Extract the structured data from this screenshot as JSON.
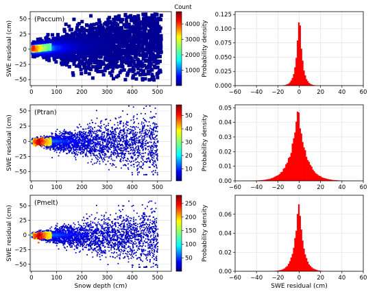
{
  "chart_data": [
    {
      "type": "heatmap",
      "annotation": "(Paccum)",
      "xlabel": "",
      "ylabel": "SWE residual (cm)",
      "xlim": [
        -5,
        555
      ],
      "ylim": [
        -60,
        62
      ],
      "xticks": [
        0,
        100,
        200,
        300,
        400,
        500
      ],
      "xtick_labels": [
        "0",
        "100",
        "200",
        "300",
        "400",
        "500"
      ],
      "yticks": [
        -50,
        -25,
        0,
        25,
        50
      ],
      "ytick_labels": [
        "−50",
        "−25",
        "0",
        "25",
        "50"
      ],
      "grid": true,
      "colorbar": {
        "label": "Count",
        "min": 1,
        "max": 4800,
        "ticks": [
          1000,
          2000,
          3000,
          4000
        ],
        "tick_labels": [
          "1000",
          "2000",
          "3000",
          "4000"
        ],
        "colormap": "jet"
      }
    },
    {
      "type": "bar",
      "ylabel": "Probability density",
      "xlabel": "",
      "xlim": [
        -60,
        60
      ],
      "ylim": [
        0,
        0.13
      ],
      "xticks": [
        -60,
        -40,
        -20,
        0,
        20,
        40,
        60
      ],
      "xtick_labels": [
        "−60",
        "−40",
        "−20",
        "0",
        "20",
        "40",
        "60"
      ],
      "yticks": [
        0,
        0.025,
        0.05,
        0.075,
        0.1,
        0.125
      ],
      "ytick_labels": [
        "0.000",
        "0.025",
        "0.050",
        "0.075",
        "0.100",
        "0.125"
      ],
      "grid": true,
      "bar_color": "#ff0000",
      "distribution": {
        "center": 0,
        "peak": 0.133,
        "scale": 2.8
      }
    },
    {
      "type": "heatmap",
      "annotation": "(Ptran)",
      "xlabel": "",
      "ylabel": "SWE residual (cm)",
      "xlim": [
        -5,
        555
      ],
      "ylim": [
        -65,
        60
      ],
      "xticks": [
        0,
        100,
        200,
        300,
        400,
        500
      ],
      "xtick_labels": [
        "0",
        "100",
        "200",
        "300",
        "400",
        "500"
      ],
      "yticks": [
        -50,
        -25,
        0,
        25,
        50
      ],
      "ytick_labels": [
        "−50",
        "−25",
        "0",
        "25",
        "50"
      ],
      "grid": true,
      "colorbar": {
        "label": "",
        "min": 1,
        "max": 58,
        "ticks": [
          10,
          20,
          30,
          40,
          50
        ],
        "tick_labels": [
          "10",
          "20",
          "30",
          "40",
          "50"
        ],
        "colormap": "jet"
      }
    },
    {
      "type": "bar",
      "ylabel": "Probability density",
      "xlabel": "",
      "xlim": [
        -60,
        60
      ],
      "ylim": [
        0,
        0.052
      ],
      "xticks": [
        -60,
        -40,
        -20,
        0,
        20,
        40,
        60
      ],
      "xtick_labels": [
        "−60",
        "−40",
        "−20",
        "0",
        "20",
        "40",
        "60"
      ],
      "yticks": [
        0,
        0.01,
        0.02,
        0.03,
        0.04,
        0.05
      ],
      "ytick_labels": [
        "0.00",
        "0.01",
        "0.02",
        "0.03",
        "0.04",
        "0.05"
      ],
      "grid": true,
      "bar_color": "#ff0000",
      "distribution": {
        "center": -1,
        "peak": 0.049,
        "scale": 7.5
      }
    },
    {
      "type": "heatmap",
      "annotation": "(Pmelt)",
      "xlabel": "Snow depth (cm)",
      "ylabel": "SWE residual (cm)",
      "xlim": [
        -5,
        555
      ],
      "ylim": [
        -62,
        68
      ],
      "xticks": [
        0,
        100,
        200,
        300,
        400,
        500
      ],
      "xtick_labels": [
        "0",
        "100",
        "200",
        "300",
        "400",
        "500"
      ],
      "yticks": [
        -50,
        -25,
        0,
        25,
        50
      ],
      "ytick_labels": [
        "−50",
        "−25",
        "0",
        "25",
        "50"
      ],
      "grid": true,
      "colorbar": {
        "label": "",
        "min": 1,
        "max": 280,
        "ticks": [
          50,
          100,
          150,
          200,
          250
        ],
        "tick_labels": [
          "50",
          "100",
          "150",
          "200",
          "250"
        ],
        "colormap": "jet"
      }
    },
    {
      "type": "bar",
      "ylabel": "Probability density",
      "xlabel": "SWE residual (cm)",
      "xlim": [
        -60,
        60
      ],
      "ylim": [
        0,
        0.08
      ],
      "xticks": [
        -60,
        -40,
        -20,
        0,
        20,
        40,
        60
      ],
      "xtick_labels": [
        "−60",
        "−40",
        "−20",
        "0",
        "20",
        "40",
        "60"
      ],
      "yticks": [
        0,
        0.02,
        0.04,
        0.06
      ],
      "ytick_labels": [
        "0.00",
        "0.02",
        "0.04",
        "0.06"
      ],
      "grid": true,
      "bar_color": "#ff0000",
      "distribution": {
        "center": -0.5,
        "peak": 0.076,
        "scale": 4.2
      }
    }
  ]
}
